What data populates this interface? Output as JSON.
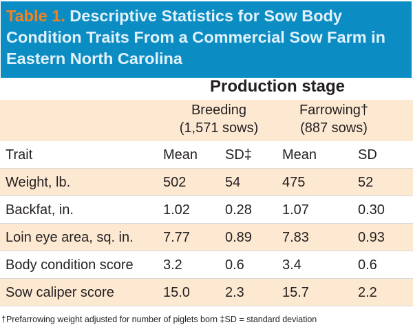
{
  "title": {
    "label": "Table 1.",
    "text": "Descriptive Statistics for Sow Body Condition Traits From a Commercial Sow Farm in Eastern North Carolina"
  },
  "stage_header": "Production stage",
  "groups": [
    {
      "name": "Breeding",
      "count": "(1,571 sows)"
    },
    {
      "name": "Farrowing†",
      "count": "(887 sows)"
    }
  ],
  "columns": [
    "Trait",
    "Mean",
    "SD‡",
    "Mean",
    "SD"
  ],
  "rows": [
    [
      "Weight, lb.",
      "502",
      "54",
      "475",
      "52"
    ],
    [
      "Backfat, in.",
      "1.02",
      "0.28",
      "1.07",
      "0.30"
    ],
    [
      "Loin eye area, sq. in.",
      "7.77",
      "0.89",
      "7.83",
      "0.93"
    ],
    [
      "Body condition score",
      "3.2",
      "0.6",
      "3.4",
      "0.6"
    ],
    [
      "Sow caliper score",
      "15.0",
      "2.3",
      "15.7",
      "2.2"
    ]
  ],
  "footnote": "†Prefarrowing weight adjusted for number of piglets born  ‡SD = standard deviation",
  "colors": {
    "header_bg": "#0b8dc4",
    "label": "#f5821f",
    "band": "#fde9d2"
  }
}
